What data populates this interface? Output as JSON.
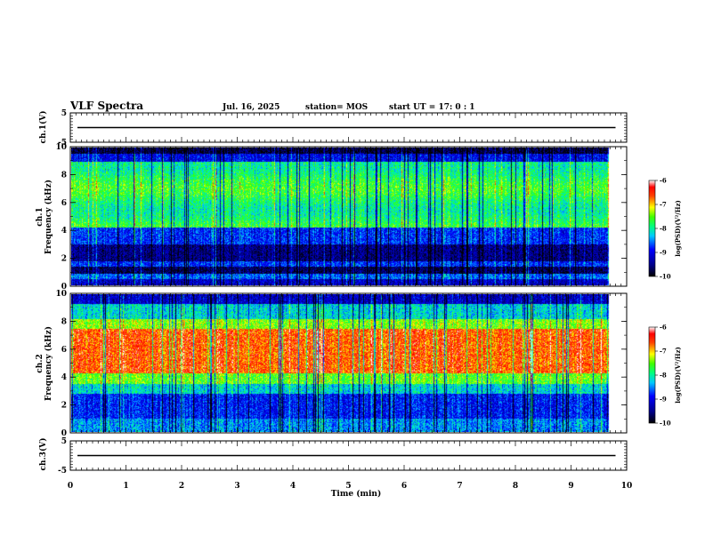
{
  "header": {
    "title": "VLF Spectra",
    "date": "Jul. 16, 2025",
    "station": "station= MOS",
    "start": "start UT =  17: 0 : 1"
  },
  "colors": {
    "black": "#000000",
    "darkblue": "#00007a",
    "blue": "#0000ff",
    "cyan": "#00ffff",
    "green": "#00ff00",
    "yellow": "#ffff00",
    "red": "#ff0000",
    "white": "#ffffff"
  },
  "chart_data": [
    {
      "type": "line",
      "name": "ch1 voltage",
      "ylabel": "ch.1(V)",
      "ylim": [
        -5,
        5
      ],
      "yticks": [
        "5",
        "-5"
      ],
      "x": [
        0,
        10
      ],
      "values": [
        0,
        0
      ]
    },
    {
      "type": "heatmap",
      "name": "ch1 spectrogram",
      "ylabel": "Frequency (kHz)",
      "channel_label": "ch.1",
      "ylim": [
        0,
        10
      ],
      "yticks": [
        "0",
        "2",
        "4",
        "6",
        "8",
        "10"
      ],
      "colorbar": {
        "label": "log(PSD)(V²/Hz)",
        "ticks": [
          "-6",
          "-7",
          "-8",
          "-9",
          "-10"
        ],
        "range": [
          -10,
          -6
        ]
      },
      "data_end_min": 9.85
    },
    {
      "type": "heatmap",
      "name": "ch2 spectrogram",
      "ylabel": "Frequency (kHz)",
      "channel_label": "ch.2",
      "ylim": [
        0,
        10
      ],
      "yticks": [
        "0",
        "2",
        "4",
        "6",
        "8",
        "10"
      ],
      "colorbar": {
        "label": "log(PSD)(V²/Hz)",
        "ticks": [
          "-6",
          "-7",
          "-8",
          "-9",
          "-10"
        ],
        "range": [
          -10,
          -6
        ]
      },
      "data_end_min": 9.85
    },
    {
      "type": "line",
      "name": "ch3 voltage",
      "ylabel": "ch.3(V)",
      "ylim": [
        -5,
        5
      ],
      "yticks": [
        "5",
        "-5"
      ],
      "x": [
        0,
        10
      ],
      "values": [
        0,
        0
      ]
    }
  ],
  "xaxis": {
    "label": "Time (min)",
    "range": [
      0,
      10
    ],
    "ticks": [
      "0",
      "1",
      "2",
      "3",
      "4",
      "5",
      "6",
      "7",
      "8",
      "9",
      "10"
    ]
  }
}
